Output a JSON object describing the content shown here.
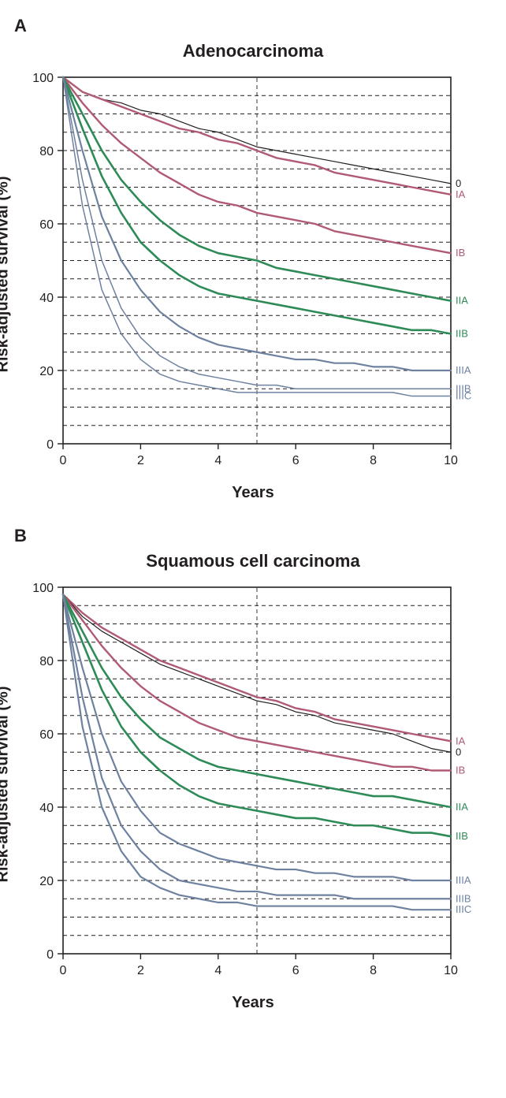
{
  "panels": [
    {
      "panel_letter": "A",
      "title": "Adenocarcinoma",
      "ylabel": "Risk-adjusted survival (%)",
      "xlabel": "Years",
      "xlim": [
        0,
        10
      ],
      "ylim": [
        0,
        100
      ],
      "xtick_step": 2,
      "ytick_step": 20,
      "hgrid_step": 5,
      "vdash_x": 5,
      "background_color": "#ffffff",
      "grid_color": "#231f20",
      "grid_dash": "5,4",
      "axis_color": "#231f20",
      "title_fontsize": 22,
      "label_fontsize": 20,
      "tick_fontsize": 16,
      "series_label_fontsize": 13,
      "series": [
        {
          "name": "0",
          "color": "#231f20",
          "width": 1.2,
          "label": "0",
          "x": [
            0,
            0.5,
            1,
            1.5,
            2,
            2.5,
            3,
            3.5,
            4,
            4.5,
            5,
            5.5,
            6,
            6.5,
            7,
            7.5,
            8,
            8.5,
            9,
            9.5,
            10
          ],
          "y": [
            100,
            96,
            94,
            93,
            91,
            90,
            88,
            86,
            85,
            83,
            81,
            80,
            79,
            78,
            77,
            76,
            75,
            74,
            73,
            72,
            71
          ]
        },
        {
          "name": "IA",
          "color": "#b05a74",
          "width": 2.4,
          "label": "IA",
          "x": [
            0,
            0.5,
            1,
            1.5,
            2,
            2.5,
            3,
            3.5,
            4,
            4.5,
            5,
            5.5,
            6,
            6.5,
            7,
            7.5,
            8,
            8.5,
            9,
            9.5,
            10
          ],
          "y": [
            100,
            96,
            94,
            92,
            90,
            88,
            86,
            85,
            83,
            82,
            80,
            78,
            77,
            76,
            74,
            73,
            72,
            71,
            70,
            69,
            68
          ]
        },
        {
          "name": "IB",
          "color": "#b05a74",
          "width": 2.4,
          "label": "IB",
          "x": [
            0,
            0.5,
            1,
            1.5,
            2,
            2.5,
            3,
            3.5,
            4,
            4.5,
            5,
            5.5,
            6,
            6.5,
            7,
            7.5,
            8,
            8.5,
            9,
            9.5,
            10
          ],
          "y": [
            100,
            93,
            87,
            82,
            78,
            74,
            71,
            68,
            66,
            65,
            63,
            62,
            61,
            60,
            58,
            57,
            56,
            55,
            54,
            53,
            52
          ]
        },
        {
          "name": "IIA",
          "color": "#2e8b57",
          "width": 2.6,
          "label": "IIA",
          "x": [
            0,
            0.5,
            1,
            1.5,
            2,
            2.5,
            3,
            3.5,
            4,
            4.5,
            5,
            5.5,
            6,
            6.5,
            7,
            7.5,
            8,
            8.5,
            9,
            9.5,
            10
          ],
          "y": [
            100,
            90,
            80,
            72,
            66,
            61,
            57,
            54,
            52,
            51,
            50,
            48,
            47,
            46,
            45,
            44,
            43,
            42,
            41,
            40,
            39
          ]
        },
        {
          "name": "IIB",
          "color": "#2e8b57",
          "width": 2.6,
          "label": "IIB",
          "x": [
            0,
            0.5,
            1,
            1.5,
            2,
            2.5,
            3,
            3.5,
            4,
            4.5,
            5,
            5.5,
            6,
            6.5,
            7,
            7.5,
            8,
            8.5,
            9,
            9.5,
            10
          ],
          "y": [
            100,
            86,
            73,
            63,
            55,
            50,
            46,
            43,
            41,
            40,
            39,
            38,
            37,
            36,
            35,
            34,
            33,
            32,
            31,
            31,
            30
          ]
        },
        {
          "name": "IIIA",
          "color": "#6e82a0",
          "width": 2.2,
          "label": "IIIA",
          "x": [
            0,
            0.5,
            1,
            1.5,
            2,
            2.5,
            3,
            3.5,
            4,
            4.5,
            5,
            5.5,
            6,
            6.5,
            7,
            7.5,
            8,
            8.5,
            9,
            9.5,
            10
          ],
          "y": [
            100,
            80,
            62,
            50,
            42,
            36,
            32,
            29,
            27,
            26,
            25,
            24,
            23,
            23,
            22,
            22,
            21,
            21,
            20,
            20,
            20
          ]
        },
        {
          "name": "IIIB",
          "color": "#6e82a0",
          "width": 1.5,
          "label": "IIIB",
          "x": [
            0,
            0.5,
            1,
            1.5,
            2,
            2.5,
            3,
            3.5,
            4,
            4.5,
            5,
            5.5,
            6,
            6.5,
            7,
            7.5,
            8,
            8.5,
            9,
            9.5,
            10
          ],
          "y": [
            100,
            72,
            50,
            37,
            29,
            24,
            21,
            19,
            18,
            17,
            16,
            16,
            15,
            15,
            15,
            15,
            15,
            15,
            15,
            15,
            15
          ]
        },
        {
          "name": "IIIC",
          "color": "#6e82a0",
          "width": 1.5,
          "label": "IIIC",
          "x": [
            0,
            0.5,
            1,
            1.5,
            2,
            2.5,
            3,
            3.5,
            4,
            4.5,
            5,
            5.5,
            6,
            6.5,
            7,
            7.5,
            8,
            8.5,
            9,
            9.5,
            10
          ],
          "y": [
            100,
            65,
            42,
            30,
            23,
            19,
            17,
            16,
            15,
            14,
            14,
            14,
            14,
            14,
            14,
            14,
            14,
            14,
            13,
            13,
            13
          ]
        }
      ]
    },
    {
      "panel_letter": "B",
      "title": "Squamous cell carcinoma",
      "ylabel": "Risk-adjusted survival (%)",
      "xlabel": "Years",
      "xlim": [
        0,
        10
      ],
      "ylim": [
        0,
        100
      ],
      "xtick_step": 2,
      "ytick_step": 20,
      "hgrid_step": 5,
      "vdash_x": 5,
      "background_color": "#ffffff",
      "grid_color": "#231f20",
      "grid_dash": "5,4",
      "axis_color": "#231f20",
      "title_fontsize": 22,
      "label_fontsize": 20,
      "tick_fontsize": 16,
      "series_label_fontsize": 13,
      "series": [
        {
          "name": "IA",
          "color": "#b05a74",
          "width": 2.4,
          "label": "IA",
          "x": [
            0,
            0.5,
            1,
            1.5,
            2,
            2.5,
            3,
            3.5,
            4,
            4.5,
            5,
            5.5,
            6,
            6.5,
            7,
            7.5,
            8,
            8.5,
            9,
            9.5,
            10
          ],
          "y": [
            98,
            93,
            89,
            86,
            83,
            80,
            78,
            76,
            74,
            72,
            70,
            69,
            67,
            66,
            64,
            63,
            62,
            61,
            60,
            59,
            58
          ]
        },
        {
          "name": "0",
          "color": "#231f20",
          "width": 1.2,
          "label": "0",
          "x": [
            0,
            0.5,
            1,
            1.5,
            2,
            2.5,
            3,
            3.5,
            4,
            4.5,
            5,
            5.5,
            6,
            6.5,
            7,
            7.5,
            8,
            8.5,
            9,
            9.5,
            10
          ],
          "y": [
            98,
            92,
            88,
            85,
            82,
            79,
            77,
            75,
            73,
            71,
            69,
            68,
            66,
            65,
            63,
            62,
            61,
            60,
            58,
            56,
            55
          ]
        },
        {
          "name": "IB",
          "color": "#b05a74",
          "width": 2.4,
          "label": "IB",
          "x": [
            0,
            0.5,
            1,
            1.5,
            2,
            2.5,
            3,
            3.5,
            4,
            4.5,
            5,
            5.5,
            6,
            6.5,
            7,
            7.5,
            8,
            8.5,
            9,
            9.5,
            10
          ],
          "y": [
            98,
            91,
            84,
            78,
            73,
            69,
            66,
            63,
            61,
            59,
            58,
            57,
            56,
            55,
            54,
            53,
            52,
            51,
            51,
            50,
            50
          ]
        },
        {
          "name": "IIA",
          "color": "#2e8b57",
          "width": 2.6,
          "label": "IIA",
          "x": [
            0,
            0.5,
            1,
            1.5,
            2,
            2.5,
            3,
            3.5,
            4,
            4.5,
            5,
            5.5,
            6,
            6.5,
            7,
            7.5,
            8,
            8.5,
            9,
            9.5,
            10
          ],
          "y": [
            98,
            88,
            78,
            70,
            64,
            59,
            56,
            53,
            51,
            50,
            49,
            48,
            47,
            46,
            45,
            44,
            43,
            43,
            42,
            41,
            40
          ]
        },
        {
          "name": "IIB",
          "color": "#2e8b57",
          "width": 2.6,
          "label": "IIB",
          "x": [
            0,
            0.5,
            1,
            1.5,
            2,
            2.5,
            3,
            3.5,
            4,
            4.5,
            5,
            5.5,
            6,
            6.5,
            7,
            7.5,
            8,
            8.5,
            9,
            9.5,
            10
          ],
          "y": [
            98,
            85,
            72,
            62,
            55,
            50,
            46,
            43,
            41,
            40,
            39,
            38,
            37,
            37,
            36,
            35,
            35,
            34,
            33,
            33,
            32
          ]
        },
        {
          "name": "IIIA",
          "color": "#6e82a0",
          "width": 2.2,
          "label": "IIIA",
          "x": [
            0,
            0.5,
            1,
            1.5,
            2,
            2.5,
            3,
            3.5,
            4,
            4.5,
            5,
            5.5,
            6,
            6.5,
            7,
            7.5,
            8,
            8.5,
            9,
            9.5,
            10
          ],
          "y": [
            98,
            78,
            60,
            47,
            39,
            33,
            30,
            28,
            26,
            25,
            24,
            23,
            23,
            22,
            22,
            21,
            21,
            21,
            20,
            20,
            20
          ]
        },
        {
          "name": "IIIB",
          "color": "#6e82a0",
          "width": 2.2,
          "label": "IIIB",
          "x": [
            0,
            0.5,
            1,
            1.5,
            2,
            2.5,
            3,
            3.5,
            4,
            4.5,
            5,
            5.5,
            6,
            6.5,
            7,
            7.5,
            8,
            8.5,
            9,
            9.5,
            10
          ],
          "y": [
            98,
            70,
            48,
            35,
            28,
            23,
            20,
            19,
            18,
            17,
            17,
            16,
            16,
            16,
            16,
            15,
            15,
            15,
            15,
            15,
            15
          ]
        },
        {
          "name": "IIIC",
          "color": "#6e82a0",
          "width": 2.2,
          "label": "IIIC",
          "x": [
            0,
            0.5,
            1,
            1.5,
            2,
            2.5,
            3,
            3.5,
            4,
            4.5,
            5,
            5.5,
            6,
            6.5,
            7,
            7.5,
            8,
            8.5,
            9,
            9.5,
            10
          ],
          "y": [
            98,
            62,
            40,
            28,
            21,
            18,
            16,
            15,
            14,
            14,
            13,
            13,
            13,
            13,
            13,
            13,
            13,
            13,
            12,
            12,
            12
          ]
        }
      ]
    }
  ]
}
